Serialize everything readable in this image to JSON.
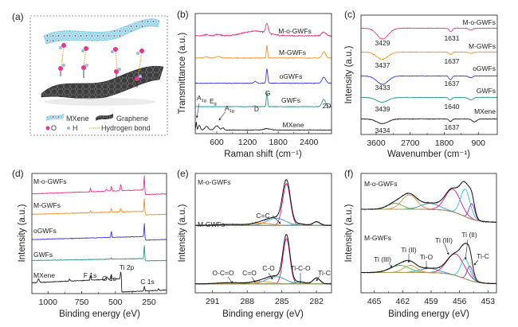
{
  "panel_a": {
    "label": "(a)",
    "legend": {
      "mxene": "MXene",
      "graphene": "Graphene",
      "o": "O",
      "h": "H",
      "hbond": "Hydrogen bond"
    },
    "colors": {
      "mxene": "#8fd6e8",
      "graphene": "#444444",
      "oxygen": "#e8368a",
      "hydrogen": "#9cb8f0",
      "hbond": "#f0a020"
    }
  },
  "chart_data": [
    {
      "id": "b",
      "label": "(b)",
      "type": "line",
      "xlabel": "Raman shift (cm⁻¹)",
      "ylabel": "Transmittance (a.u.)",
      "xlim": [
        180,
        2840
      ],
      "ylim": [
        0,
        100
      ],
      "xticks": [
        600,
        1200,
        1800,
        2400
      ],
      "grid": false,
      "series": [
        {
          "name": "M-o-GWFs",
          "color": "#e8368a",
          "offset": 81.5,
          "peaks": [
            {
              "x": 1580,
              "amp": 8,
              "w": 25
            },
            {
              "x": 1350,
              "amp": 4,
              "w": 220
            },
            {
              "x": 2690,
              "amp": 3,
              "w": 40
            },
            {
              "x": 400,
              "amp": 1,
              "w": 40
            },
            {
              "x": 620,
              "amp": 1,
              "w": 50
            }
          ]
        },
        {
          "name": "M-GWFs",
          "color": "#f0922e",
          "offset": 63,
          "peaks": [
            {
              "x": 1580,
              "amp": 10.5,
              "w": 12
            },
            {
              "x": 2690,
              "amp": 5,
              "w": 35
            },
            {
              "x": 400,
              "amp": 1.2,
              "w": 30
            },
            {
              "x": 620,
              "amp": 1.2,
              "w": 40
            }
          ]
        },
        {
          "name": "oGWFs",
          "color": "#3a3ad8",
          "offset": 42,
          "peaks": [
            {
              "x": 1580,
              "amp": 12,
              "w": 15
            },
            {
              "x": 2690,
              "amp": 5,
              "w": 35
            },
            {
              "x": 1350,
              "amp": 1.5,
              "w": 25
            }
          ]
        },
        {
          "name": "GWFs",
          "color": "#2a9a8a",
          "offset": 22.5,
          "peaks": [
            {
              "x": 1580,
              "amp": 12.5,
              "w": 12
            },
            {
              "x": 2690,
              "amp": 6,
              "w": 35
            },
            {
              "x": 1350,
              "amp": 0.6,
              "w": 25
            }
          ]
        },
        {
          "name": "MXene",
          "color": "#222222",
          "offset": 3,
          "peaks": [
            {
              "x": 200,
              "amp": 7,
              "w": 8
            },
            {
              "x": 260,
              "amp": 4,
              "w": 20
            },
            {
              "x": 400,
              "amp": 3,
              "w": 35
            },
            {
              "x": 600,
              "amp": 3.5,
              "w": 40
            },
            {
              "x": 720,
              "amp": 2,
              "w": 20
            },
            {
              "x": 1580,
              "amp": 1.2,
              "w": 60
            }
          ]
        }
      ],
      "annotations": {
        "d": "D",
        "g": "G",
        "two_d": "2D",
        "a1g_left": {
          "main": "A",
          "sub": "1g"
        },
        "eg": {
          "main": "E",
          "sub": "g"
        },
        "a1g_right": {
          "main": "A",
          "sub": "1g"
        }
      }
    },
    {
      "id": "c",
      "label": "(c)",
      "type": "line",
      "xlabel": "Wavenumber (cm⁻¹)",
      "ylabel": "Intensity (a.u.)",
      "xlim": [
        4000,
        400
      ],
      "ylim": [
        0,
        100
      ],
      "xticks": [
        3600,
        2700,
        1800,
        900
      ],
      "grid": false,
      "series": [
        {
          "name": "M-o-GWFs",
          "color": "#e8368a",
          "offset": 89,
          "peaks": [
            {
              "x": 3429,
              "amp": -9,
              "w": 150
            },
            {
              "x": 1631,
              "amp": -3,
              "w": 40
            },
            {
              "x": 1100,
              "amp": -1.5,
              "w": 50
            }
          ],
          "dips": [
            "3429",
            "1631"
          ]
        },
        {
          "name": "M-GWFs",
          "color": "#f0922e",
          "offset": 69,
          "peaks": [
            {
              "x": 3437,
              "amp": -6,
              "w": 150
            },
            {
              "x": 1637,
              "amp": -2,
              "w": 40
            },
            {
              "x": 1100,
              "amp": -1,
              "w": 50
            }
          ],
          "dips": [
            "3437",
            "1637"
          ]
        },
        {
          "name": "oGWFs",
          "color": "#3a3ad8",
          "offset": 49,
          "peaks": [
            {
              "x": 3433,
              "amp": -7,
              "w": 150
            },
            {
              "x": 1637,
              "amp": -3,
              "w": 40
            },
            {
              "x": 1100,
              "amp": -1.5,
              "w": 50
            }
          ],
          "dips": [
            "3433",
            "1637"
          ]
        },
        {
          "name": "GWFs",
          "color": "#2a9a8a",
          "offset": 31,
          "peaks": [
            {
              "x": 3439,
              "amp": -4,
              "w": 150
            },
            {
              "x": 1640,
              "amp": -2,
              "w": 40
            },
            {
              "x": 1100,
              "amp": -2,
              "w": 60
            }
          ],
          "dips": [
            "3439",
            "1640"
          ]
        },
        {
          "name": "MXene",
          "color": "#222222",
          "offset": 13,
          "peaks": [
            {
              "x": 3434,
              "amp": -4,
              "w": 150
            },
            {
              "x": 1637,
              "amp": -2,
              "w": 40
            },
            {
              "x": 1000,
              "amp": -2.5,
              "w": 60
            }
          ],
          "dips": [
            "3434",
            "1637"
          ]
        }
      ]
    },
    {
      "id": "d",
      "label": "(d)",
      "type": "line",
      "xlabel": "Binding energy (eV)",
      "ylabel": "Intensity (a.u.)",
      "xlim": [
        1120,
        120
      ],
      "ylim": [
        0,
        100
      ],
      "xticks": [
        1000,
        750,
        500,
        250
      ],
      "grid": false,
      "series": [
        {
          "name": "M-o-GWFs",
          "color": "#e8368a",
          "offset": 83,
          "slope": 4,
          "steps": [
            {
              "x": 283,
              "drop": 4
            }
          ],
          "peaks": [
            {
              "x": 285,
              "amp": 12,
              "w": 3
            },
            {
              "x": 460,
              "amp": 5,
              "w": 4
            },
            {
              "x": 530,
              "amp": 4,
              "w": 3
            },
            {
              "x": 685,
              "amp": 3,
              "w": 3
            },
            {
              "x": 565,
              "amp": 1.5,
              "w": 6
            }
          ]
        },
        {
          "name": "M-GWFs",
          "color": "#f0922e",
          "offset": 66,
          "slope": 3,
          "steps": [
            {
              "x": 283,
              "drop": 3
            }
          ],
          "peaks": [
            {
              "x": 285,
              "amp": 11,
              "w": 3
            },
            {
              "x": 460,
              "amp": 3,
              "w": 4
            },
            {
              "x": 530,
              "amp": 3,
              "w": 3
            },
            {
              "x": 685,
              "amp": 1.5,
              "w": 3
            }
          ]
        },
        {
          "name": "oGWFs",
          "color": "#3a3ad8",
          "offset": 45,
          "slope": 3,
          "steps": [
            {
              "x": 283,
              "drop": 3
            }
          ],
          "peaks": [
            {
              "x": 285,
              "amp": 11,
              "w": 3
            },
            {
              "x": 530,
              "amp": 5,
              "w": 3
            }
          ]
        },
        {
          "name": "GWFs",
          "color": "#2a9a8a",
          "offset": 27.5,
          "slope": 2,
          "steps": [
            {
              "x": 283,
              "drop": 2
            }
          ],
          "peaks": [
            {
              "x": 285,
              "amp": 11,
              "w": 3
            },
            {
              "x": 530,
              "amp": 1,
              "w": 3
            }
          ]
        },
        {
          "name": "MXene",
          "color": "#222222",
          "offset": 9,
          "slope": 5,
          "steps": [
            {
              "x": 455,
              "drop": 11
            }
          ],
          "peaks": [
            {
              "x": 1070,
              "amp": 3,
              "w": 6
            },
            {
              "x": 840,
              "amp": 1.5,
              "w": 4
            },
            {
              "x": 685,
              "amp": 4,
              "w": 3
            },
            {
              "x": 565,
              "amp": 2,
              "w": 6
            },
            {
              "x": 530,
              "amp": 4,
              "w": 3
            },
            {
              "x": 460,
              "amp": 6,
              "w": 3
            },
            {
              "x": 285,
              "amp": 4,
              "w": 3
            },
            {
              "x": 180,
              "amp": 1.5,
              "w": 3
            }
          ]
        }
      ],
      "annotations": {
        "f1s": "F 1s",
        "o1s": "O 1s",
        "ti2p": "Ti 2p",
        "c1s": "C 1s"
      }
    },
    {
      "id": "e",
      "label": "(e)",
      "type": "line",
      "xlabel": "Binding energy (eV)",
      "ylabel": "Intensity (a.u.)",
      "xlim": [
        292.5,
        280.7
      ],
      "ylim": [
        0,
        100
      ],
      "xticks": [
        291,
        288,
        285,
        282
      ],
      "grid": false,
      "baseline_color": "#a8a050",
      "series": [
        {
          "name": "M-o-GWFs",
          "offset": 56.5,
          "offset_right": 56.5,
          "components": [
            {
              "x": 284.6,
              "amp": 35,
              "w": 0.33,
              "color": "#e0187a"
            },
            {
              "x": 285.5,
              "amp": 6,
              "w": 0.8,
              "color": "#3a8fd0"
            },
            {
              "x": 286.8,
              "amp": 2,
              "w": 0.8,
              "color": "#f08a24"
            },
            {
              "x": 289.5,
              "amp": 0.8,
              "w": 1,
              "color": "#3cc43c"
            },
            {
              "x": 283.5,
              "amp": 1.2,
              "w": 0.5,
              "color": "#29c7c7"
            },
            {
              "x": 282.0,
              "amp": 3,
              "w": 0.3,
              "color": "#8a2be2"
            }
          ]
        },
        {
          "name": "M-GWFs",
          "offset": 7.5,
          "offset_right": 7.5,
          "components": [
            {
              "x": 284.6,
              "amp": 38,
              "w": 0.3,
              "color": "#e0187a"
            },
            {
              "x": 285.5,
              "amp": 6,
              "w": 0.8,
              "color": "#3a8fd0"
            },
            {
              "x": 286.8,
              "amp": 2,
              "w": 0.8,
              "color": "#f08a24"
            },
            {
              "x": 289.5,
              "amp": 1,
              "w": 1,
              "color": "#3cc43c"
            },
            {
              "x": 283.5,
              "amp": 1.5,
              "w": 0.5,
              "color": "#29c7c7"
            },
            {
              "x": 282.0,
              "amp": 5,
              "w": 0.3,
              "color": "#8a2be2"
            }
          ]
        }
      ],
      "annotations": {
        "cc": "C=C",
        "ocoo": "O-C=O",
        "co_double": "C=O",
        "co": "C-O",
        "tico": "Ti-C-O",
        "tic": "Ti-C"
      }
    },
    {
      "id": "f",
      "label": "(f)",
      "type": "line",
      "xlabel": "Binding energy (eV)",
      "ylabel": "Intensity (a.u.)",
      "xlim": [
        466.4,
        452.1
      ],
      "ylim": [
        0,
        100
      ],
      "xticks": [
        465,
        462,
        459,
        456,
        453
      ],
      "grid": false,
      "baseline_color": "#a8a050",
      "series": [
        {
          "name": "M-o-GWFs",
          "offset": 70,
          "offset_right": 59,
          "components": [
            {
              "x": 462.8,
              "amp": 5,
              "w": 0.8,
              "color": "#3cc43c"
            },
            {
              "x": 461.3,
              "amp": 12,
              "w": 0.8,
              "color": "#f08a24"
            },
            {
              "x": 459.1,
              "amp": 5,
              "w": 1.0,
              "color": "#3a8fd0"
            },
            {
              "x": 456.7,
              "amp": 19,
              "w": 0.8,
              "color": "#e0187a"
            },
            {
              "x": 455.4,
              "amp": 23,
              "w": 0.5,
              "color": "#29c7c7"
            },
            {
              "x": 454.7,
              "amp": 13,
              "w": 0.3,
              "color": "#8a2be2"
            }
          ]
        },
        {
          "name": "M-GWFs",
          "offset": 17,
          "offset_right": 7.5,
          "components": [
            {
              "x": 462.3,
              "amp": 6,
              "w": 1.0,
              "color": "#3cc43c"
            },
            {
              "x": 461.2,
              "amp": 6,
              "w": 0.7,
              "color": "#f08a24"
            },
            {
              "x": 459.2,
              "amp": 3.5,
              "w": 1.0,
              "color": "#3a8fd0"
            },
            {
              "x": 456.4,
              "amp": 18,
              "w": 0.9,
              "color": "#e0187a"
            },
            {
              "x": 455.4,
              "amp": 17,
              "w": 0.45,
              "color": "#29c7c7"
            },
            {
              "x": 454.9,
              "amp": 12,
              "w": 0.3,
              "color": "#8a2be2"
            }
          ]
        }
      ],
      "annotations": {
        "ti3_left": "Ti (III)",
        "ti2_left": "Ti (II)",
        "tio": "Ti-O",
        "ti3_right": "Ti (III)",
        "ti2_right": "Ti (II)",
        "tic": "Ti-C"
      }
    }
  ]
}
